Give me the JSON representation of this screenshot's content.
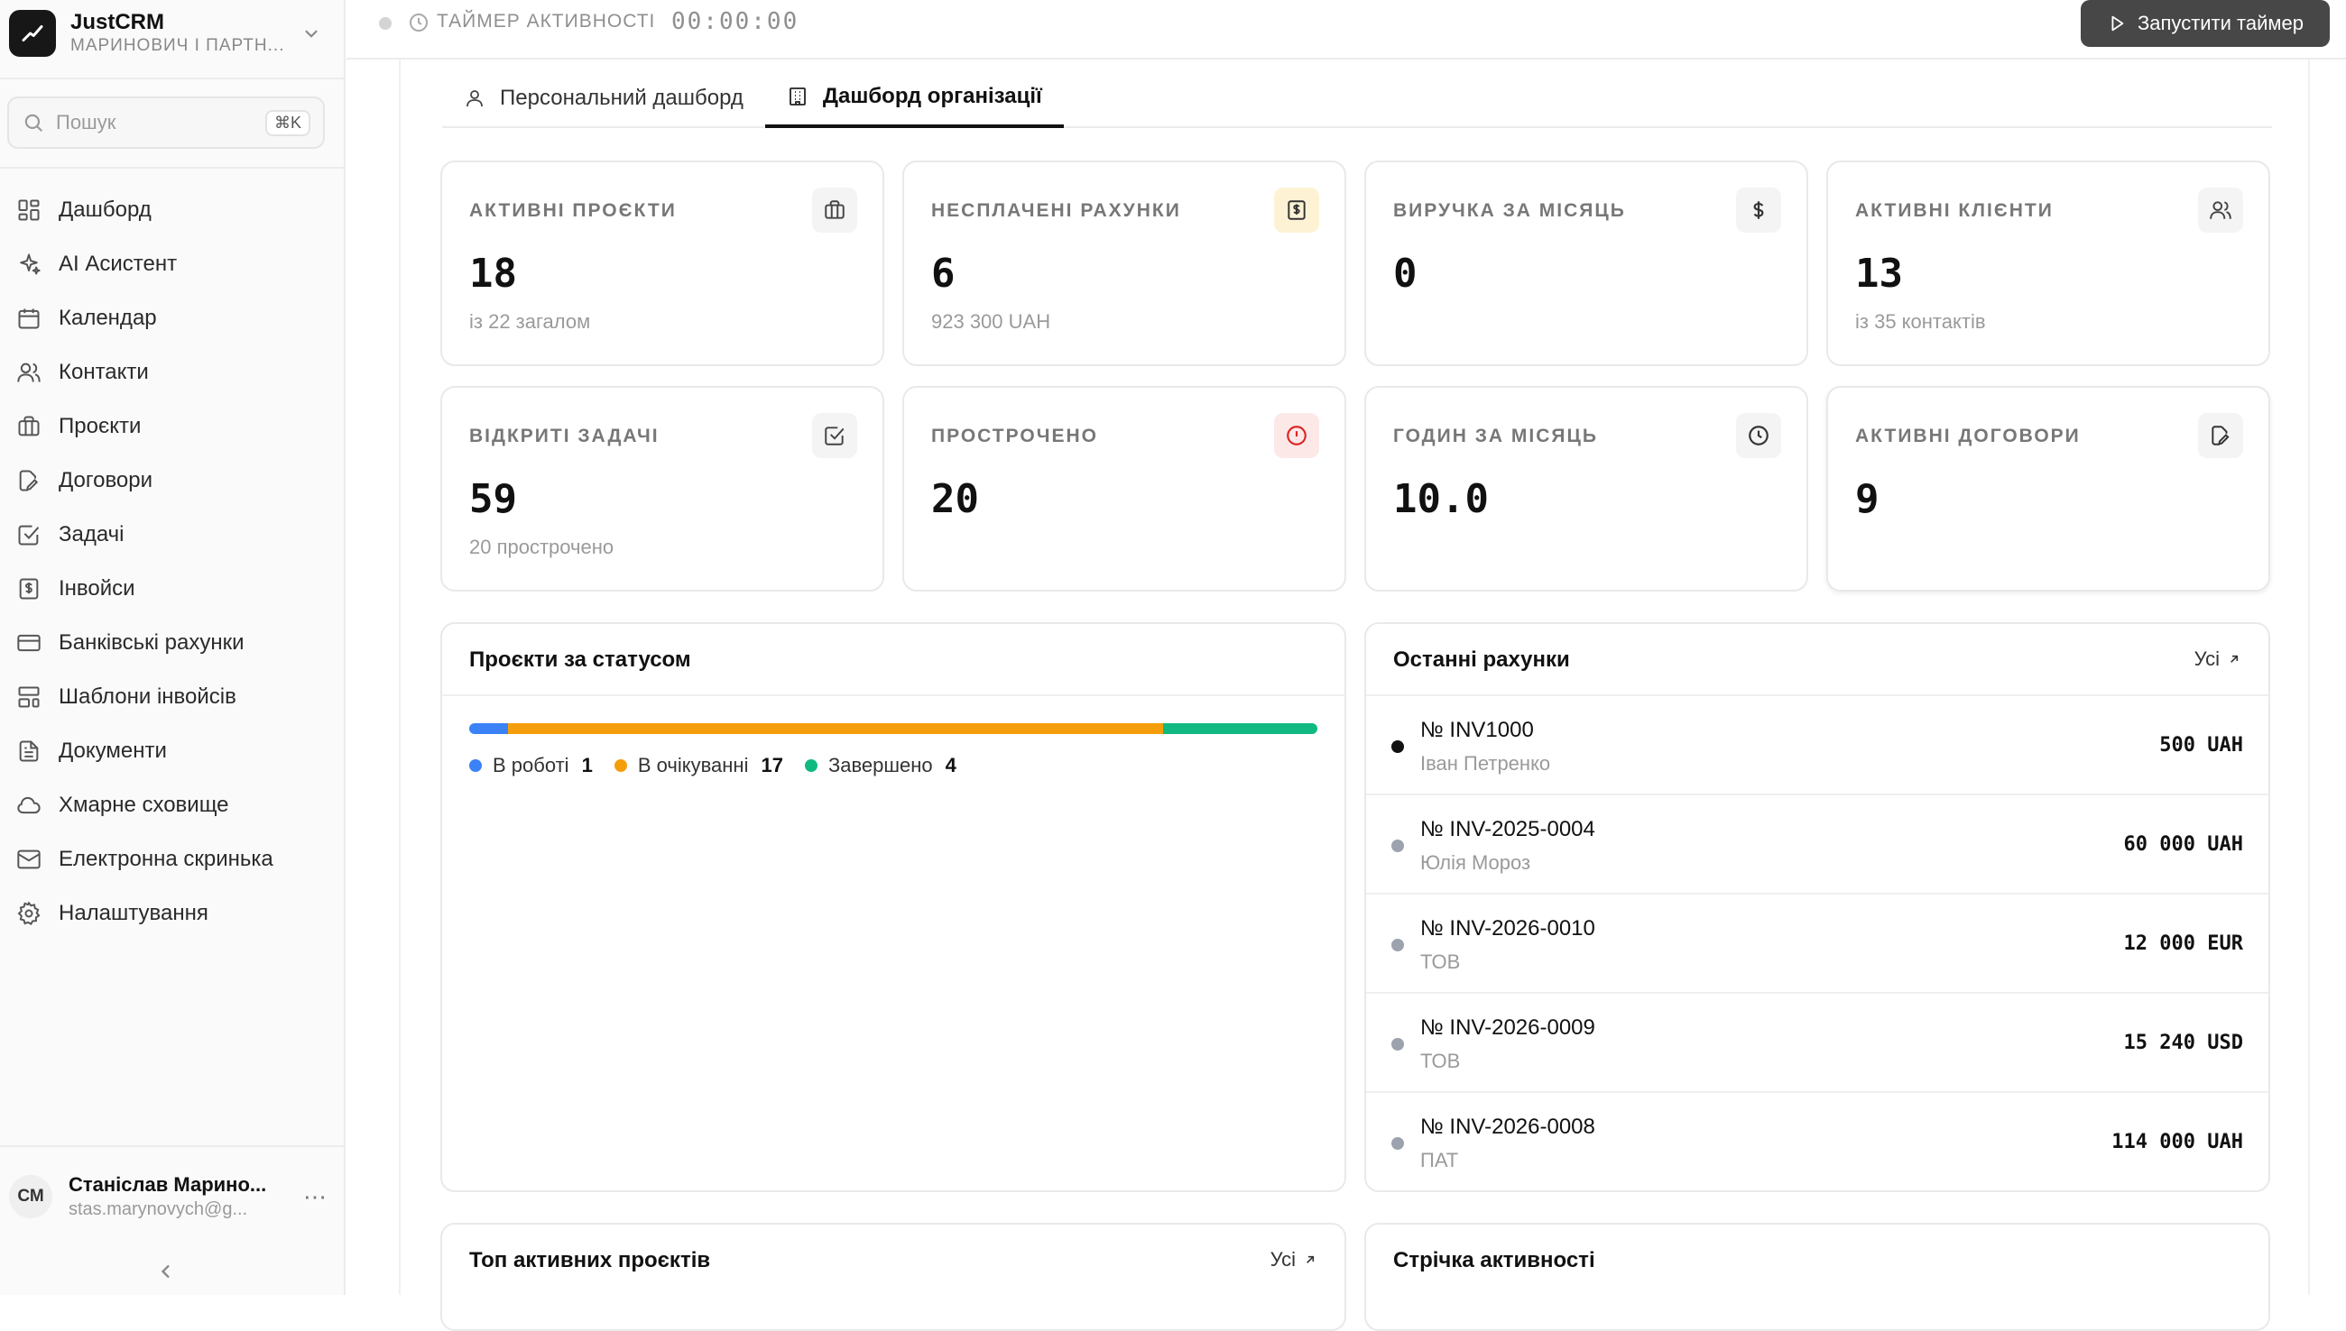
{
  "sidebar": {
    "brand_name": "JustCRM",
    "brand_org": "МАРИНОВИЧ І ПАРТН...",
    "search_placeholder": "Пошук",
    "search_shortcut": "⌘K",
    "nav": [
      {
        "label": "Дашборд",
        "icon": "grid-icon"
      },
      {
        "label": "AI Асистент",
        "icon": "sparkles-icon"
      },
      {
        "label": "Календар",
        "icon": "calendar-icon"
      },
      {
        "label": "Контакти",
        "icon": "users-icon"
      },
      {
        "label": "Проєкти",
        "icon": "briefcase-icon"
      },
      {
        "label": "Договори",
        "icon": "file-edit-icon"
      },
      {
        "label": "Задачі",
        "icon": "check-square-icon"
      },
      {
        "label": "Інвойси",
        "icon": "receipt-icon"
      },
      {
        "label": "Банківські рахунки",
        "icon": "credit-card-icon"
      },
      {
        "label": "Шаблони інвойсів",
        "icon": "layout-template-icon"
      },
      {
        "label": "Документи",
        "icon": "file-text-icon"
      },
      {
        "label": "Хмарне сховище",
        "icon": "cloud-icon"
      },
      {
        "label": "Електронна скринька",
        "icon": "mail-icon"
      },
      {
        "label": "Налаштування",
        "icon": "gear-icon"
      }
    ],
    "user": {
      "initials": "СМ",
      "name": "Станіслав Марино...",
      "email": "stas.marynovych@g..."
    }
  },
  "topbar": {
    "timer_label": "ТАЙМЕР АКТИВНОСТІ",
    "timer_value": "00:00:00",
    "start_button": "Запустити таймер"
  },
  "tabs": [
    {
      "label": "Персональний дашборд",
      "active": false
    },
    {
      "label": "Дашборд організації",
      "active": true
    }
  ],
  "kpis": [
    {
      "title": "АКТИВНІ ПРОЄКТИ",
      "value": "18",
      "sub": "із 22 загалом",
      "icon": "briefcase-icon"
    },
    {
      "title": "НЕСПЛАЧЕНІ РАХУНКИ",
      "value": "6",
      "sub": "923 300 UAH",
      "icon": "receipt-icon"
    },
    {
      "title": "ВИРУЧКА ЗА МІСЯЦЬ",
      "value": "0",
      "sub": "",
      "icon": "dollar-icon"
    },
    {
      "title": "АКТИВНІ КЛІЄНТИ",
      "value": "13",
      "sub": "із 35 контактів",
      "icon": "users-icon"
    },
    {
      "title": "ВІДКРИТІ ЗАДАЧІ",
      "value": "59",
      "sub": "20 прострочено",
      "icon": "check-square-icon"
    },
    {
      "title": "ПРОСТРОЧЕНО",
      "value": "20",
      "sub": "",
      "icon": "alert-circle-icon"
    },
    {
      "title": "ГОДИН ЗА МІСЯЦЬ",
      "value": "10.0",
      "sub": "",
      "icon": "clock-icon"
    },
    {
      "title": "АКТИВНІ ДОГОВОРИ",
      "value": "9",
      "sub": "",
      "icon": "file-edit-icon"
    }
  ],
  "projects_status": {
    "title": "Проєкти за статусом",
    "segments": [
      {
        "label": "В роботі",
        "count": "1",
        "value": 1,
        "color": "#3b82f6"
      },
      {
        "label": "В очікуванні",
        "count": "17",
        "value": 17,
        "color": "#f59e0b"
      },
      {
        "label": "Завершено",
        "count": "4",
        "value": 4,
        "color": "#10b981"
      }
    ]
  },
  "recent_invoices": {
    "title": "Останні рахунки",
    "all_label": "Усі",
    "items": [
      {
        "number": "№ INV1000",
        "client": "Іван Петренко",
        "amount": "500 UAH",
        "dot": "dark"
      },
      {
        "number": "№ INV-2025-0004",
        "client": "Юлія Мороз",
        "amount": "60 000 UAH",
        "dot": "gray"
      },
      {
        "number": "№ INV-2026-0010",
        "client": "ТОВ",
        "amount": "12 000 EUR",
        "dot": "gray"
      },
      {
        "number": "№ INV-2026-0009",
        "client": "ТОВ",
        "amount": "15 240 USD",
        "dot": "gray"
      },
      {
        "number": "№ INV-2026-0008",
        "client": "ПАТ",
        "amount": "114 000 UAH",
        "dot": "gray"
      }
    ]
  },
  "top_projects": {
    "title": "Топ активних проєктів",
    "all_label": "Усі"
  },
  "activity_feed": {
    "title": "Стрічка активності"
  }
}
